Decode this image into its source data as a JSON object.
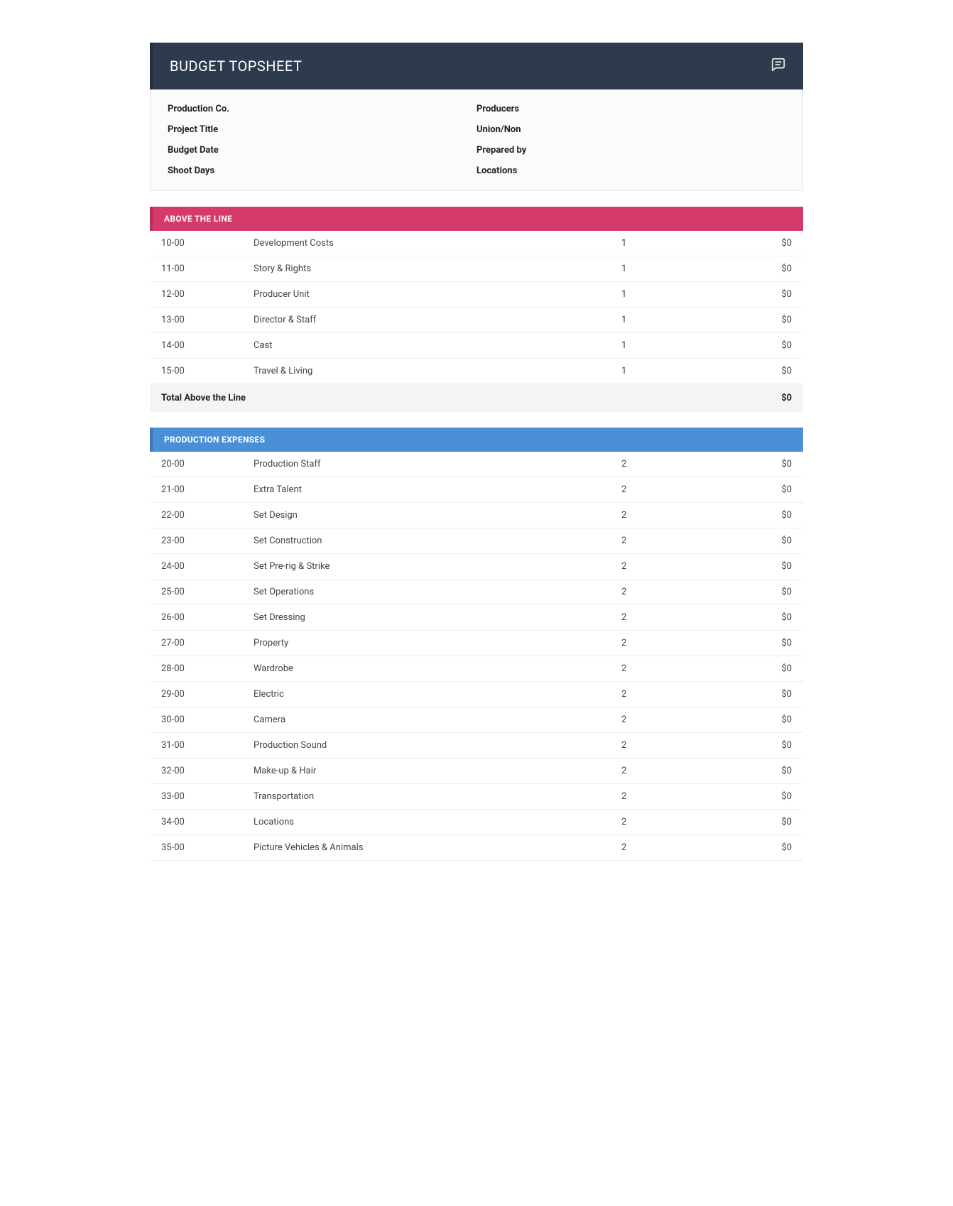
{
  "header": {
    "title": "BUDGET TOPSHEET"
  },
  "info": {
    "left": [
      {
        "label": "Production Co."
      },
      {
        "label": "Project Title"
      },
      {
        "label": "Budget Date"
      },
      {
        "label": "Shoot Days"
      }
    ],
    "right": [
      {
        "label": "Producers"
      },
      {
        "label": "Union/Non"
      },
      {
        "label": "Prepared by"
      },
      {
        "label": "Locations"
      }
    ]
  },
  "sections": [
    {
      "title": "ABOVE THE LINE",
      "header_bg": "#d63a6a",
      "rows": [
        {
          "code": "10-00",
          "desc": "Development Costs",
          "page": "1",
          "amount": "$0"
        },
        {
          "code": "11-00",
          "desc": "Story & Rights",
          "page": "1",
          "amount": "$0"
        },
        {
          "code": "12-00",
          "desc": "Producer Unit",
          "page": "1",
          "amount": "$0"
        },
        {
          "code": "13-00",
          "desc": "Director & Staff",
          "page": "1",
          "amount": "$0"
        },
        {
          "code": "14-00",
          "desc": "Cast",
          "page": "1",
          "amount": "$0"
        },
        {
          "code": "15-00",
          "desc": "Travel & Living",
          "page": "1",
          "amount": "$0"
        }
      ],
      "total_label": "Total Above the Line",
      "total_amount": "$0"
    },
    {
      "title": "PRODUCTION EXPENSES",
      "header_bg": "#4a90d9",
      "rows": [
        {
          "code": "20-00",
          "desc": "Production Staff",
          "page": "2",
          "amount": "$0"
        },
        {
          "code": "21-00",
          "desc": "Extra Talent",
          "page": "2",
          "amount": "$0"
        },
        {
          "code": "22-00",
          "desc": "Set Design",
          "page": "2",
          "amount": "$0"
        },
        {
          "code": "23-00",
          "desc": "Set Construction",
          "page": "2",
          "amount": "$0"
        },
        {
          "code": "24-00",
          "desc": "Set Pre-rig & Strike",
          "page": "2",
          "amount": "$0"
        },
        {
          "code": "25-00",
          "desc": "Set Operations",
          "page": "2",
          "amount": "$0"
        },
        {
          "code": "26-00",
          "desc": "Set Dressing",
          "page": "2",
          "amount": "$0"
        },
        {
          "code": "27-00",
          "desc": "Property",
          "page": "2",
          "amount": "$0"
        },
        {
          "code": "28-00",
          "desc": "Wardrobe",
          "page": "2",
          "amount": "$0"
        },
        {
          "code": "29-00",
          "desc": "Electric",
          "page": "2",
          "amount": "$0"
        },
        {
          "code": "30-00",
          "desc": "Camera",
          "page": "2",
          "amount": "$0"
        },
        {
          "code": "31-00",
          "desc": "Production Sound",
          "page": "2",
          "amount": "$0"
        },
        {
          "code": "32-00",
          "desc": "Make-up & Hair",
          "page": "2",
          "amount": "$0"
        },
        {
          "code": "33-00",
          "desc": "Transportation",
          "page": "2",
          "amount": "$0"
        },
        {
          "code": "34-00",
          "desc": "Locations",
          "page": "2",
          "amount": "$0"
        },
        {
          "code": "35-00",
          "desc": "Picture Vehicles & Animals",
          "page": "2",
          "amount": "$0"
        }
      ]
    }
  ]
}
